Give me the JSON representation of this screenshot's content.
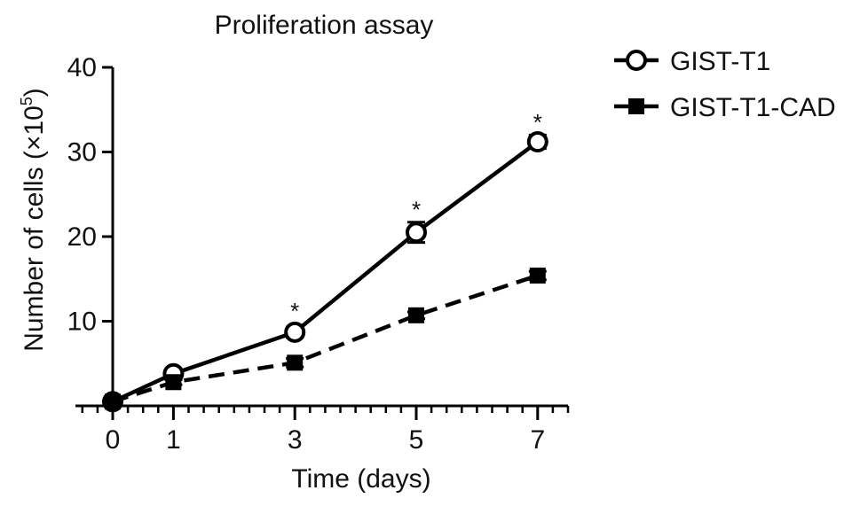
{
  "chart_data": {
    "type": "line",
    "title": "Proliferation assay",
    "xlabel": "Time (days)",
    "ylabel_main": "Number of cells (×10",
    "ylabel_sup": "5",
    "ylabel_close": ")",
    "x_ticks": [
      0,
      1,
      3,
      5,
      7
    ],
    "y_ticks": [
      10,
      20,
      30,
      40
    ],
    "xlim": [
      0,
      7.5
    ],
    "ylim": [
      0,
      40
    ],
    "grid": false,
    "legend_position": "top-right",
    "x": [
      0,
      1,
      3,
      5,
      7
    ],
    "series": [
      {
        "name": "GIST-T1",
        "values": [
          0.5,
          3.8,
          8.7,
          20.5,
          31.2
        ],
        "errors": [
          0.3,
          0.4,
          0.6,
          1.2,
          0.8
        ],
        "marker": "open-circle",
        "line": "solid"
      },
      {
        "name": "GIST-T1-CAD",
        "values": [
          0.5,
          2.8,
          5.1,
          10.7,
          15.4
        ],
        "errors": [
          0.2,
          0.3,
          0.5,
          0.4,
          0.5
        ],
        "marker": "filled-square",
        "line": "dashed"
      }
    ],
    "annotations": [
      {
        "x": 3,
        "y": 11.3,
        "text": "*"
      },
      {
        "x": 5,
        "y": 23.3,
        "text": "*"
      },
      {
        "x": 7,
        "y": 33.6,
        "text": "*"
      }
    ]
  }
}
